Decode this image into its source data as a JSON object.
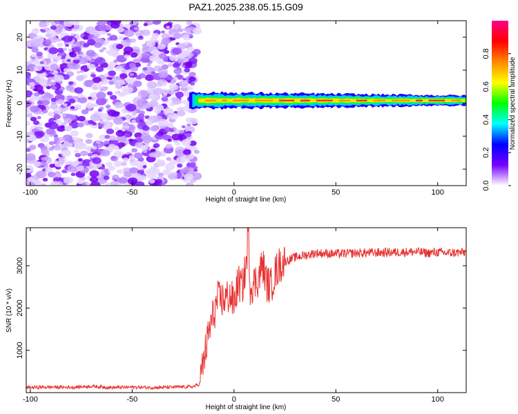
{
  "figure_title": "PAZ1.2025.238.05.15.G09",
  "chart_data": [
    {
      "type": "heatmap",
      "title": "",
      "xlabel": "Height of straight line (km)",
      "ylabel": "Frequency (Hz)",
      "xlim": [
        -102,
        114
      ],
      "ylim": [
        -25,
        25
      ],
      "xticks": [
        -100,
        -50,
        0,
        50,
        100
      ],
      "xtick_labels": [
        "-100",
        "-50",
        "0",
        "50",
        "100"
      ],
      "yticks": [
        -20,
        -10,
        0,
        10,
        20
      ],
      "ytick_labels": [
        "-20",
        "-10",
        "0",
        "10",
        "20"
      ],
      "noise_region_x": [
        -102,
        -18
      ],
      "signal_region_x": [
        -22,
        114
      ],
      "signal_center_frequency_hz": 0.8,
      "signal_band_halfwidth_hz": [
        2.5,
        1.5
      ],
      "grid": false,
      "colorbar": {
        "label": "Normalized spectral amplitude",
        "range": [
          0.0,
          1.0
        ],
        "ticks": [
          0.0,
          0.2,
          0.4,
          0.6,
          0.8
        ],
        "tick_labels": [
          "0.0",
          "0.2",
          "0.4",
          "0.6",
          "0.8"
        ],
        "colormap": [
          "#ffffff",
          "#7700ff",
          "#0000ff",
          "#00ffff",
          "#00ff00",
          "#ffff00",
          "#ff8800",
          "#ff0000",
          "#ff0088"
        ]
      }
    },
    {
      "type": "line",
      "title": "",
      "xlabel": "Height of straight line (km)",
      "ylabel": "SNR (10 * v/v)",
      "xlim": [
        -102,
        114
      ],
      "ylim": [
        0,
        3900
      ],
      "xticks": [
        -100,
        -50,
        0,
        50,
        100
      ],
      "xtick_labels": [
        "-100",
        "-50",
        "0",
        "50",
        "100"
      ],
      "yticks": [
        1000,
        2000,
        3000
      ],
      "ytick_labels": [
        "1000",
        "2000",
        "3000"
      ],
      "grid": false,
      "series": [
        {
          "color": "#e83030",
          "x": [
            -102,
            -90,
            -80,
            -70,
            -60,
            -50,
            -40,
            -30,
            -20,
            -17,
            -12,
            -8,
            -5,
            -2,
            0,
            2,
            4,
            6,
            7,
            8,
            10,
            12,
            14,
            16,
            18,
            20,
            22,
            25,
            30,
            35,
            40,
            50,
            60,
            70,
            80,
            90,
            95,
            100,
            105,
            110,
            114
          ],
          "values": [
            120,
            130,
            125,
            150,
            120,
            130,
            120,
            130,
            140,
            200,
            1500,
            2200,
            2200,
            2300,
            2100,
            2600,
            2500,
            3000,
            3850,
            2500,
            2600,
            2700,
            3050,
            2600,
            2500,
            2800,
            3000,
            3100,
            3200,
            3250,
            3300,
            3280,
            3300,
            3310,
            3320,
            3330,
            3300,
            3320,
            3300,
            3310,
            3320
          ]
        }
      ]
    }
  ]
}
